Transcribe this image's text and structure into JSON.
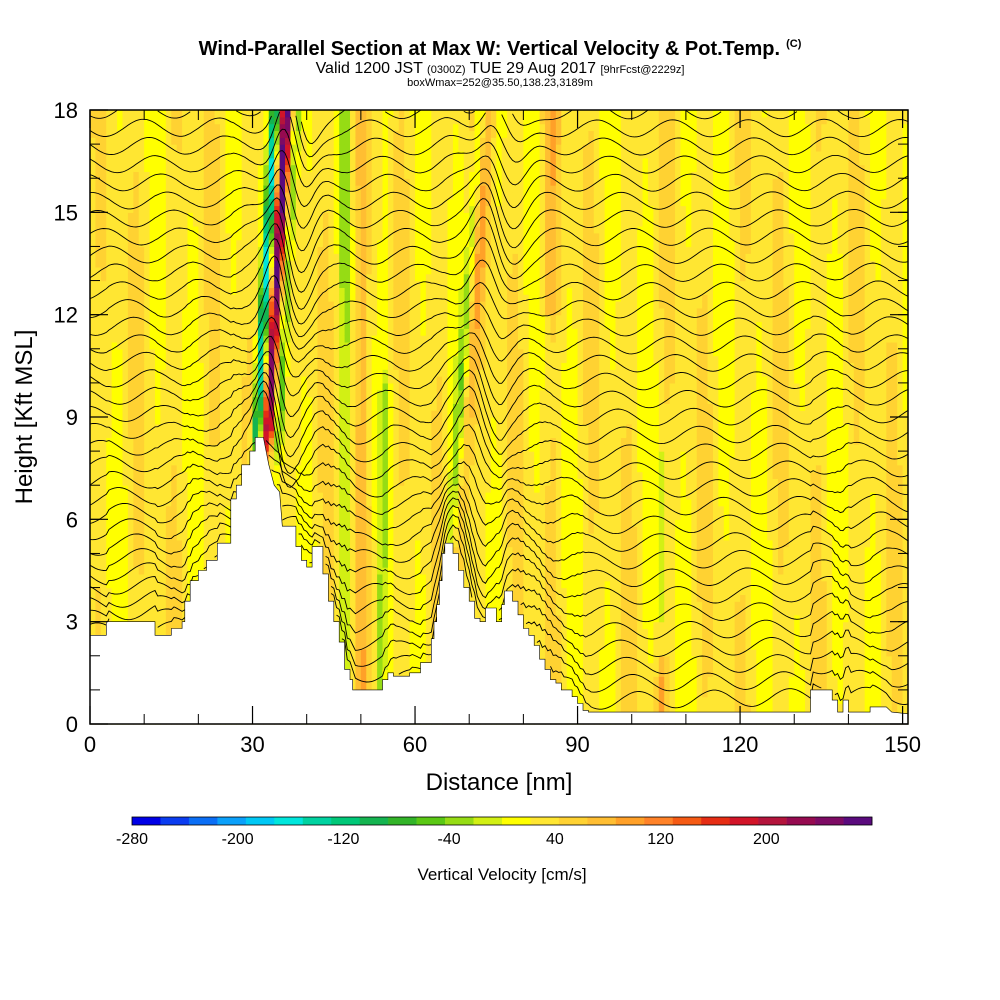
{
  "title": {
    "main": "Wind-Parallel Section at Max W: Vertical Velocity & Pot.Temp.",
    "copyright": "(C)",
    "valid_prefix": "Valid 1200 JST",
    "valid_utc": "(0300Z)",
    "valid_date": "TUE 29 Aug 2017",
    "forecast": "[9hrFcst@2229z]",
    "box": "boxWmax=252@35.50,138.23,3189m"
  },
  "chart_data": {
    "type": "heatmap",
    "xlabel": "Distance [nm]",
    "ylabel": "Height [Kft MSL]",
    "xlim": [
      0,
      151
    ],
    "ylim": [
      0,
      18
    ],
    "x_ticks": [
      0,
      30,
      60,
      90,
      120,
      150
    ],
    "y_ticks": [
      0,
      3,
      6,
      9,
      12,
      15,
      18
    ],
    "colorbar": {
      "label": "Vertical Velocity [cm/s]",
      "ticks": [
        "-280",
        "-200",
        "-120",
        "-40",
        "40",
        "120",
        "200"
      ],
      "range": [
        -280,
        280
      ],
      "step": 20,
      "colors": [
        "#0000e6",
        "#0a3cf0",
        "#0a6ef5",
        "#0aa0fa",
        "#00c8f5",
        "#00e6dc",
        "#00d2a0",
        "#00c878",
        "#14b450",
        "#32b428",
        "#5ac814",
        "#96dc14",
        "#d2f014",
        "#ffff00",
        "#ffe632",
        "#ffd232",
        "#ffbe32",
        "#ffa028",
        "#ff8228",
        "#f55a14",
        "#e62d14",
        "#d21428",
        "#b4143c",
        "#960a50",
        "#7d0a64",
        "#5a0a7d"
      ]
    },
    "terrain_kft": [
      [
        0,
        2.6
      ],
      [
        3,
        2.6
      ],
      [
        3,
        3
      ],
      [
        12,
        3
      ],
      [
        12,
        2.6
      ],
      [
        15,
        2.6
      ],
      [
        15,
        2.8
      ],
      [
        17,
        2.8
      ],
      [
        17,
        3
      ],
      [
        17.5,
        3
      ],
      [
        17.5,
        3.6
      ],
      [
        18.5,
        3.6
      ],
      [
        18.5,
        4.2
      ],
      [
        20,
        4.2
      ],
      [
        20,
        4.5
      ],
      [
        21.5,
        4.5
      ],
      [
        21.5,
        4.8
      ],
      [
        23.5,
        4.8
      ],
      [
        23.5,
        5.3
      ],
      [
        26,
        5.3
      ],
      [
        26,
        6.6
      ],
      [
        27,
        6.6
      ],
      [
        27,
        7
      ],
      [
        28,
        7
      ],
      [
        28,
        7.6
      ],
      [
        29.5,
        7.6
      ],
      [
        29.5,
        8
      ],
      [
        30.5,
        8
      ],
      [
        30.5,
        8.4
      ],
      [
        32,
        8.4
      ],
      [
        33,
        7.6
      ],
      [
        34,
        7
      ],
      [
        35,
        6.8
      ],
      [
        35.5,
        5.8
      ],
      [
        38,
        5.8
      ],
      [
        38,
        5.2
      ],
      [
        39,
        5.2
      ],
      [
        39,
        4.8
      ],
      [
        40,
        4.8
      ],
      [
        40,
        4.6
      ],
      [
        41,
        4.6
      ],
      [
        41,
        5.2
      ],
      [
        43,
        5.2
      ],
      [
        43,
        4.4
      ],
      [
        44,
        4.4
      ],
      [
        44,
        3.6
      ],
      [
        45,
        3.6
      ],
      [
        45,
        3
      ],
      [
        46,
        3
      ],
      [
        46,
        2.4
      ],
      [
        47,
        2.4
      ],
      [
        47,
        1.6
      ],
      [
        48,
        1.6
      ],
      [
        48,
        1.3
      ],
      [
        48.5,
        1.3
      ],
      [
        48.5,
        1
      ],
      [
        54,
        1
      ],
      [
        54,
        1.3
      ],
      [
        55,
        1.3
      ],
      [
        55,
        1.5
      ],
      [
        56,
        1.5
      ],
      [
        56,
        1.4
      ],
      [
        59,
        1.4
      ],
      [
        59,
        1.5
      ],
      [
        61,
        1.5
      ],
      [
        61,
        1.8
      ],
      [
        63,
        1.8
      ],
      [
        63,
        2.5
      ],
      [
        63.5,
        2.5
      ],
      [
        63.5,
        3
      ],
      [
        64,
        3
      ],
      [
        64,
        3.5
      ],
      [
        64.5,
        3.5
      ],
      [
        64.5,
        4.2
      ],
      [
        65,
        4.2
      ],
      [
        65,
        5
      ],
      [
        65.5,
        5
      ],
      [
        65.5,
        5.3
      ],
      [
        67,
        5.3
      ],
      [
        67,
        5
      ],
      [
        68,
        5
      ],
      [
        68,
        4.5
      ],
      [
        69,
        4.5
      ],
      [
        69,
        4
      ],
      [
        70,
        4
      ],
      [
        70,
        3.6
      ],
      [
        71,
        3.6
      ],
      [
        71,
        3.1
      ],
      [
        72,
        3.1
      ],
      [
        72,
        3
      ],
      [
        73,
        3
      ],
      [
        73,
        3.4
      ],
      [
        75,
        3.4
      ],
      [
        75,
        3
      ],
      [
        76,
        3
      ],
      [
        76,
        3.5
      ],
      [
        76.5,
        3.5
      ],
      [
        76.5,
        3.9
      ],
      [
        78,
        3.9
      ],
      [
        78,
        3.6
      ],
      [
        79,
        3.6
      ],
      [
        79,
        3.2
      ],
      [
        80,
        3.2
      ],
      [
        80,
        2.8
      ],
      [
        81,
        2.8
      ],
      [
        81,
        2.6
      ],
      [
        82,
        2.6
      ],
      [
        82,
        2.3
      ],
      [
        83,
        2.3
      ],
      [
        83,
        1.9
      ],
      [
        84,
        1.9
      ],
      [
        84,
        1.6
      ],
      [
        85,
        1.6
      ],
      [
        85,
        1.3
      ],
      [
        86,
        1.3
      ],
      [
        86,
        1.2
      ],
      [
        87,
        1.2
      ],
      [
        87,
        1
      ],
      [
        89,
        1
      ],
      [
        89,
        0.8
      ],
      [
        90,
        0.8
      ],
      [
        90,
        0.6
      ],
      [
        91,
        0.6
      ],
      [
        91,
        0.4
      ],
      [
        92,
        0.4
      ],
      [
        92,
        0.35
      ],
      [
        133,
        0.35
      ],
      [
        133,
        1
      ],
      [
        137,
        1
      ],
      [
        137,
        0.7
      ],
      [
        138,
        0.7
      ],
      [
        138,
        0.35
      ],
      [
        139,
        0.35
      ],
      [
        139,
        0.7
      ],
      [
        140,
        0.7
      ],
      [
        140,
        0.35
      ],
      [
        144,
        0.35
      ],
      [
        144,
        0.5
      ],
      [
        147,
        0.5
      ],
      [
        148,
        0.35
      ],
      [
        151,
        0.3
      ]
    ]
  }
}
